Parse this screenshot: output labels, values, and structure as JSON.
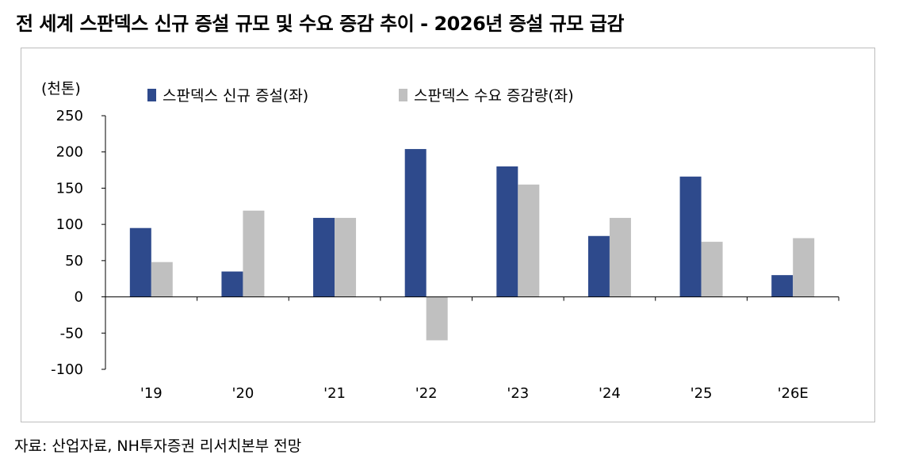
{
  "title": "전 세계 스판덱스 신규 증설 규모 및 수요 증감 추이  - 2026년 증설 규모 급감",
  "source": "자료: 산업자료, NH투자증권 리서치본부 전망",
  "colors": {
    "series1": "#2e4a8c",
    "series2": "#c0c0c0"
  },
  "chart_data": {
    "type": "bar",
    "title": "전 세계 스판덱스 신규 증설 규모 및 수요 증감 추이  - 2026년 증설 규모 급감",
    "ylabel": "(천톤)",
    "xlabel": "",
    "categories": [
      "'19",
      "'20",
      "'21",
      "'22",
      "'23",
      "'24",
      "'25",
      "'26E"
    ],
    "series": [
      {
        "name": "스판덱스 신규 증설(좌)",
        "values": [
          95,
          35,
          109,
          204,
          180,
          84,
          166,
          30
        ]
      },
      {
        "name": "스판덱스 수요 증감량(좌)",
        "values": [
          48,
          119,
          109,
          -60,
          155,
          109,
          76,
          81
        ]
      }
    ],
    "ylim": [
      -100,
      250
    ],
    "yticks": [
      250,
      200,
      150,
      100,
      50,
      0,
      -50,
      -100
    ],
    "legend_position": "top",
    "grid": false
  }
}
